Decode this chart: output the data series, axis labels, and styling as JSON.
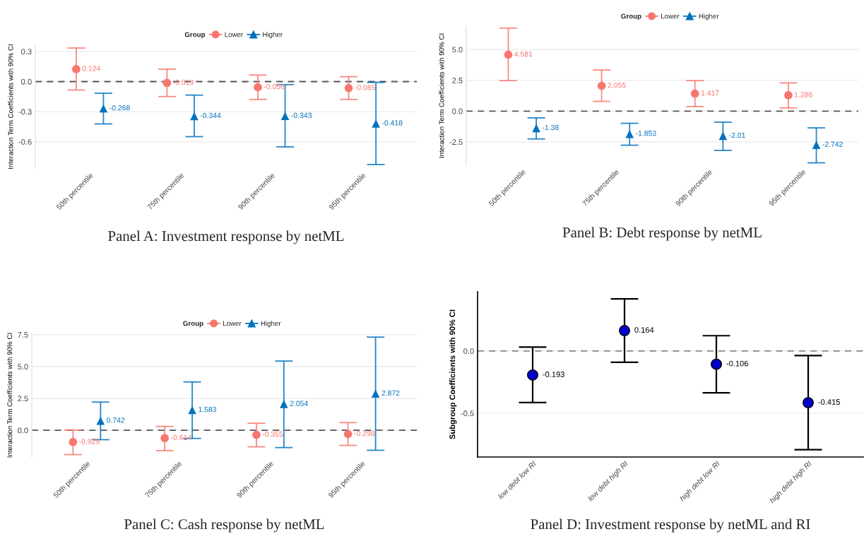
{
  "chart_data": [
    {
      "type": "scatter",
      "title": "Panel A: Investment response by netML",
      "ylabel": "Interaction Term Coefficients with 90% CI",
      "legend_title": "Group",
      "legend": "top",
      "grid": "y",
      "data_labels": true,
      "categories": [
        "50th percentile",
        "75th percentile",
        "90th percentile",
        "95th percentile"
      ],
      "ylim": [
        -0.87,
        0.37
      ],
      "yticks": [
        0.3,
        {
          "value": 0,
          "label": "0.0"
        },
        {
          "value": -0.3,
          "label": "-0.3"
        },
        {
          "value": -0.6,
          "label": "-0.6"
        }
      ],
      "ref_lines": [
        {
          "axis": "y",
          "value": 0,
          "label": null,
          "color": "#555555",
          "line_style": "dashed"
        }
      ],
      "series": [
        {
          "name": "Lower",
          "color": "#f8766d",
          "marker": "circle",
          "values": [
            0.124,
            -0.013,
            -0.056,
            -0.065
          ],
          "errors": [
            [
              -0.084,
              0.335
            ],
            [
              -0.149,
              0.124
            ],
            [
              -0.178,
              0.065
            ],
            [
              -0.178,
              0.049
            ]
          ]
        },
        {
          "name": "Higher",
          "color": "#0072bd",
          "marker": "triangle",
          "values": [
            -0.268,
            -0.344,
            -0.343,
            -0.418
          ],
          "errors": [
            [
              -0.422,
              -0.116
            ],
            [
              -0.549,
              -0.135
            ],
            [
              -0.651,
              -0.03
            ],
            [
              -0.827,
              -0.008
            ]
          ]
        }
      ]
    },
    {
      "type": "scatter",
      "title": "Panel B: Debt response by netML",
      "ylabel": "Interaction Term Coefficients with 90% CI",
      "legend_title": "Group",
      "legend": "top",
      "grid": "y",
      "data_labels": true,
      "categories": [
        "50th percentile",
        "75th percentile",
        "90th percentile",
        "95th percentile"
      ],
      "ylim": [
        -4.4,
        6.9
      ],
      "yticks": [
        {
          "value": 5,
          "label": "5.0"
        },
        2.5,
        {
          "value": 0,
          "label": "0.0"
        },
        {
          "value": -2.5,
          "label": "-2.5"
        }
      ],
      "ref_lines": [
        {
          "axis": "y",
          "value": 0,
          "label": null,
          "color": "#555555",
          "line_style": "dashed"
        }
      ],
      "series": [
        {
          "name": "Lower",
          "color": "#f8766d",
          "marker": "circle",
          "values": [
            4.581,
            2.055,
            1.417,
            1.286
          ],
          "errors": [
            [
              2.48,
              6.74
            ],
            [
              0.79,
              3.34
            ],
            [
              0.37,
              2.48
            ],
            [
              0.26,
              2.29
            ]
          ]
        },
        {
          "name": "Higher",
          "color": "#0072bd",
          "marker": "triangle",
          "values": [
            -1.38,
            -1.853,
            -2.01,
            -2.742
          ],
          "errors": [
            [
              -2.26,
              -0.55
            ],
            [
              -2.77,
              -0.99
            ],
            [
              -3.19,
              -0.9
            ],
            [
              -4.2,
              -1.36
            ]
          ]
        }
      ]
    },
    {
      "type": "scatter",
      "title": "Panel C: Cash response by netML",
      "ylabel": "Interaction Term Coefficients with 90% CI",
      "legend_title": "Group",
      "legend": "top",
      "grid": "y",
      "data_labels": true,
      "categories": [
        "50th percentile",
        "75th percentile",
        "90th percentile",
        "95th percentile"
      ],
      "ylim": [
        -2.1,
        7.6
      ],
      "yticks": [
        7.5,
        {
          "value": 5,
          "label": "5.0"
        },
        2.5,
        {
          "value": 0,
          "label": "0.0"
        }
      ],
      "ref_lines": [
        {
          "axis": "y",
          "value": 0,
          "label": null,
          "color": "#555555",
          "line_style": "dashed"
        }
      ],
      "series": [
        {
          "name": "Lower",
          "color": "#f8766d",
          "marker": "circle",
          "values": [
            -0.929,
            -0.614,
            -0.355,
            -0.298
          ],
          "errors": [
            [
              -1.91,
              0.02
            ],
            [
              -1.6,
              0.3
            ],
            [
              -1.3,
              0.55
            ],
            [
              -1.19,
              0.6
            ]
          ]
        },
        {
          "name": "Higher",
          "color": "#0072bd",
          "marker": "triangle",
          "values": [
            0.742,
            1.583,
            2.054,
            2.872
          ],
          "errors": [
            [
              -0.74,
              2.21
            ],
            [
              -0.64,
              3.79
            ],
            [
              -1.36,
              5.43
            ],
            [
              -1.57,
              7.31
            ]
          ]
        }
      ]
    },
    {
      "type": "scatter",
      "title": "Panel D: Investment response by netML and RI",
      "ylabel": "Subgroup Coefficients with 90% CI",
      "grid": "y",
      "data_labels": true,
      "categories": [
        "low debt low RI",
        "low debt high RI",
        "high debt low RI",
        "high debt high RI"
      ],
      "ylim": [
        -0.851,
        0.476
      ],
      "yticks": [
        {
          "value": 0,
          "label": "0.0"
        },
        {
          "value": -0.5,
          "label": "-0.5"
        }
      ],
      "ref_lines": [
        {
          "axis": "y",
          "value": 0,
          "label": null,
          "color": "#888888",
          "line_style": "dashed"
        }
      ],
      "series": [
        {
          "color": "#0000cc",
          "marker": "circle",
          "values": [
            -0.193,
            0.164,
            -0.106,
            -0.415
          ],
          "errors": [
            [
              -0.414,
              0.031
            ],
            [
              -0.09,
              0.419
            ],
            [
              -0.336,
              0.123
            ],
            [
              -0.792,
              -0.037
            ]
          ]
        }
      ]
    }
  ]
}
